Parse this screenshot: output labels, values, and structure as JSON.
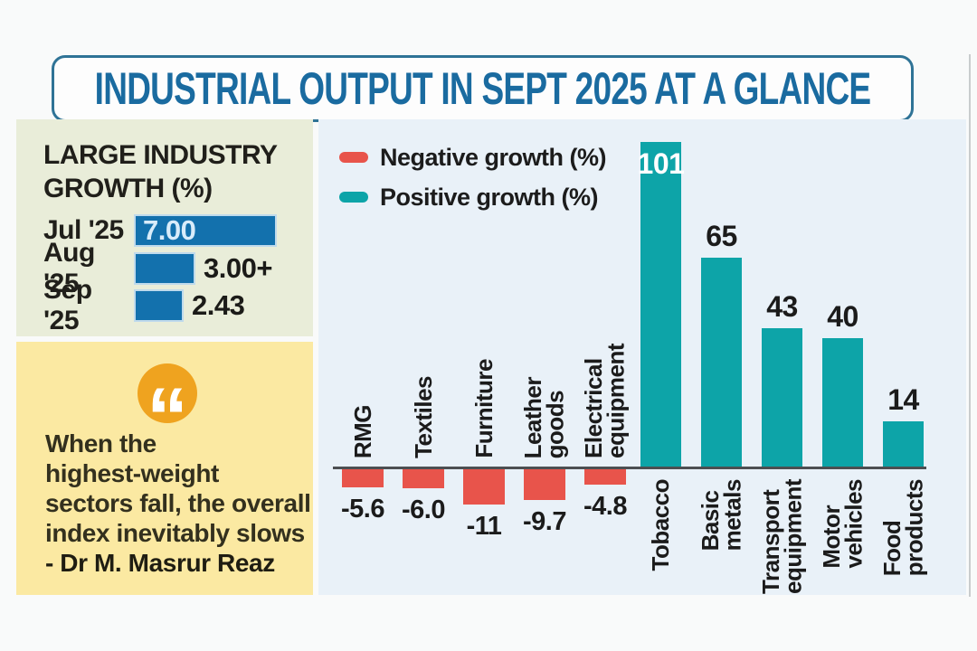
{
  "page": {
    "title": "INDUSTRIAL OUTPUT IN SEPT 2025 AT A GLANCE"
  },
  "growth_panel": {
    "heading_line1": "LARGE INDUSTRY",
    "heading_line2": "GROWTH (%)",
    "rows": [
      {
        "label": "Jul '25",
        "value": 7.0,
        "value_label": "7.00",
        "value_inside": true
      },
      {
        "label": "Aug '25",
        "value": 3.0,
        "value_label": "3.00+",
        "value_inside": false
      },
      {
        "label": "Sep '25",
        "value": 2.43,
        "value_label": "2.43",
        "value_inside": false
      }
    ]
  },
  "quote_panel": {
    "icon": "quote-icon",
    "lines": [
      "When the",
      "highest-weight",
      "sectors fall, the overall",
      "index inevitably slows"
    ],
    "attribution": "- Dr M. Masrur Reaz"
  },
  "legend": [
    {
      "label": "Negative growth (%)",
      "color": "#e8544b"
    },
    {
      "label": "Positive growth (%)",
      "color": "#0da4a8"
    }
  ],
  "chart_data": [
    {
      "type": "bar",
      "title": "INDUSTRIAL OUTPUT IN SEPT 2025 AT A GLANCE",
      "xlabel": "",
      "ylabel": "",
      "legend_position": "top-left",
      "grid": false,
      "ylim": [
        -11,
        101
      ],
      "series": [
        {
          "name": "Negative growth (%)",
          "color": "#e8544b",
          "categories": [
            "RMG",
            "Textiles",
            "Furniture",
            "Leather goods",
            "Electrical equipment"
          ],
          "values": [
            -5.6,
            -6.0,
            -11,
            -9.7,
            -4.8
          ],
          "value_labels": [
            "-5.6",
            "-6.0",
            "-11",
            "-9.7",
            "-4.8"
          ]
        },
        {
          "name": "Positive growth (%)",
          "color": "#0da4a8",
          "categories": [
            "Tobacco",
            "Basic metals",
            "Transport equipment",
            "Motor vehicles",
            "Food products"
          ],
          "values": [
            101,
            65,
            43,
            40,
            14
          ],
          "value_labels": [
            "101",
            "65",
            "43",
            "40",
            "14"
          ]
        }
      ]
    },
    {
      "type": "bar",
      "orientation": "horizontal",
      "title": "LARGE INDUSTRY GROWTH (%)",
      "categories": [
        "Jul '25",
        "Aug '25",
        "Sep '25"
      ],
      "values": [
        7.0,
        3.0,
        2.43
      ],
      "value_labels": [
        "7.00",
        "3.00+",
        "2.43"
      ]
    }
  ],
  "colors": {
    "title_blue": "#1a6ba0",
    "panel_green": "#e9edd9",
    "panel_yellow": "#fbe9a2",
    "chart_bg": "#e9f1f8",
    "bar_blue": "#1371ad",
    "bar_teal": "#0da4a8",
    "bar_red": "#e8544b",
    "accent_orange": "#efa31f"
  }
}
